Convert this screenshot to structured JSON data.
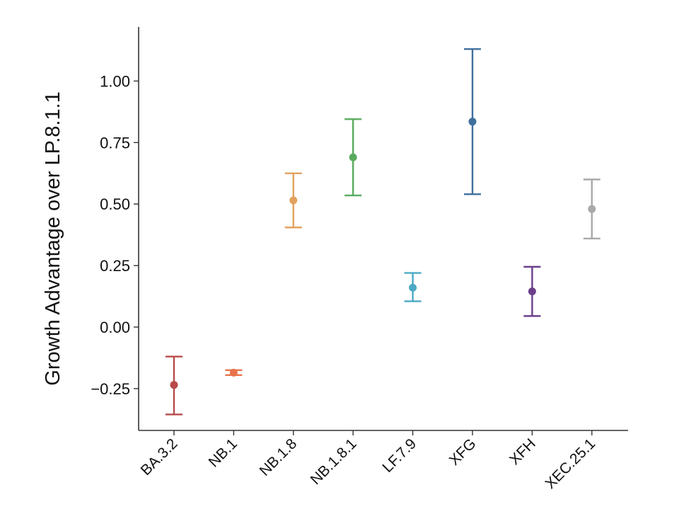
{
  "chart_data": {
    "type": "scatter",
    "title": "",
    "xlabel": "",
    "ylabel": "Growth Advantage over LP.8.1.1",
    "ylim": [
      -0.42,
      1.22
    ],
    "yticks": [
      -0.25,
      0.0,
      0.25,
      0.5,
      0.75,
      1.0
    ],
    "ytick_labels": [
      "−0.25",
      "0.00",
      "0.25",
      "0.50",
      "0.75",
      "1.00"
    ],
    "grid": false,
    "legend": "none",
    "categories": [
      "BA.3.2",
      "NB.1",
      "NB.1.8",
      "NB.1.8.1",
      "LF.7.9",
      "XFG",
      "XFH",
      "XEC.25.1"
    ],
    "points": [
      {
        "label": "BA.3.2",
        "value": -0.235,
        "lower": -0.355,
        "upper": -0.12,
        "color": "#b94a4a"
      },
      {
        "label": "NB.1",
        "value": -0.185,
        "lower": -0.195,
        "upper": -0.175,
        "color": "#e8734a"
      },
      {
        "label": "NB.1.8",
        "value": 0.515,
        "lower": 0.405,
        "upper": 0.625,
        "color": "#e3a15f"
      },
      {
        "label": "NB.1.8.1",
        "value": 0.69,
        "lower": 0.535,
        "upper": 0.845,
        "color": "#5aab5e"
      },
      {
        "label": "LF.7.9",
        "value": 0.16,
        "lower": 0.105,
        "upper": 0.22,
        "color": "#4aa9c4"
      },
      {
        "label": "XFG",
        "value": 0.835,
        "lower": 0.54,
        "upper": 1.13,
        "color": "#3f6f9c"
      },
      {
        "label": "XFH",
        "value": 0.145,
        "lower": 0.045,
        "upper": 0.245,
        "color": "#6b3f8c"
      },
      {
        "label": "XEC.25.1",
        "value": 0.48,
        "lower": 0.36,
        "upper": 0.6,
        "color": "#a9a9a9"
      }
    ]
  }
}
